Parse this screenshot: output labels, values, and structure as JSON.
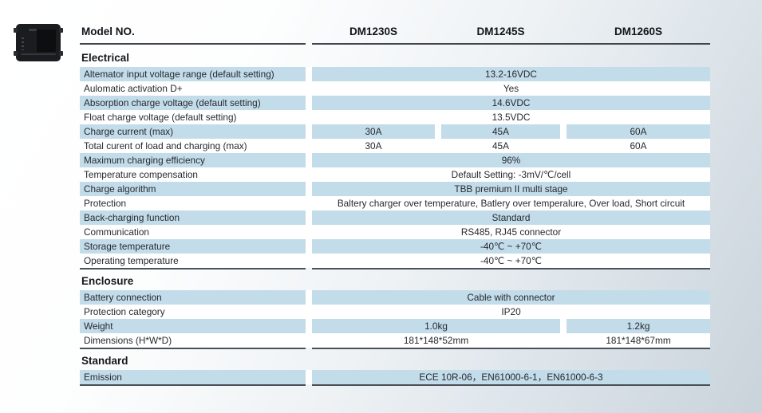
{
  "header": {
    "label": "Model NO.",
    "columns": [
      "DM1230S",
      "DM1245S",
      "DM1260S"
    ]
  },
  "colors": {
    "row_highlight": "#c3dcea",
    "section_rule": "#41464d",
    "background_end": "#c9d3da"
  },
  "product_image": "black-battery-charger-device",
  "sections": [
    {
      "title": "Electrical",
      "rows": [
        {
          "label": "Altemator input voltage range (default setting)",
          "span": "13.2-16VDC"
        },
        {
          "label": "Aulomatic activation D+",
          "span": "Yes"
        },
        {
          "label": "Absorption charge voltage (default setting)",
          "span": "14.6VDC"
        },
        {
          "label": "Float charge voltage (default setting)",
          "span": "13.5VDC"
        },
        {
          "label": "Charge current (max)",
          "cols": [
            "30A",
            "45A",
            "60A"
          ]
        },
        {
          "label": "Total curent of load and charging (max)",
          "cols": [
            "30A",
            "45A",
            "60A"
          ]
        },
        {
          "label": "Maximum charging efficiency",
          "span": "96%"
        },
        {
          "label": "Temperature compensation",
          "span": "Default Setting: -3mV/℃/cell"
        },
        {
          "label": "Charge algorithm",
          "span": "TBB premium II multi stage"
        },
        {
          "label": "Protection",
          "span": "Baltery charger over temperature, Batlery over temperalure, Over load, Short circuit"
        },
        {
          "label": "Back-charging function",
          "span": "Standard"
        },
        {
          "label": "Communication",
          "span": "RS485, RJ45 connector"
        },
        {
          "label": "Storage temperature",
          "span": "-40℃ ~ +70℃"
        },
        {
          "label": "Operating temperature",
          "span": "-40℃ ~ +70℃"
        }
      ]
    },
    {
      "title": "Enclosure",
      "rows": [
        {
          "label": "Battery connection",
          "span": "Cable with connector"
        },
        {
          "label": "Protection category",
          "span": "IP20"
        },
        {
          "label": "Weight",
          "left2": "1.0kg",
          "right": "1.2kg"
        },
        {
          "label": "Dimensions (H*W*D)",
          "left2": "181*148*52mm",
          "right": "181*148*67mm"
        }
      ]
    },
    {
      "title": "Standard",
      "rows": [
        {
          "label": "Emission",
          "span": "ECE 10R-06，EN61000-6-1，EN61000-6-3"
        }
      ]
    }
  ]
}
